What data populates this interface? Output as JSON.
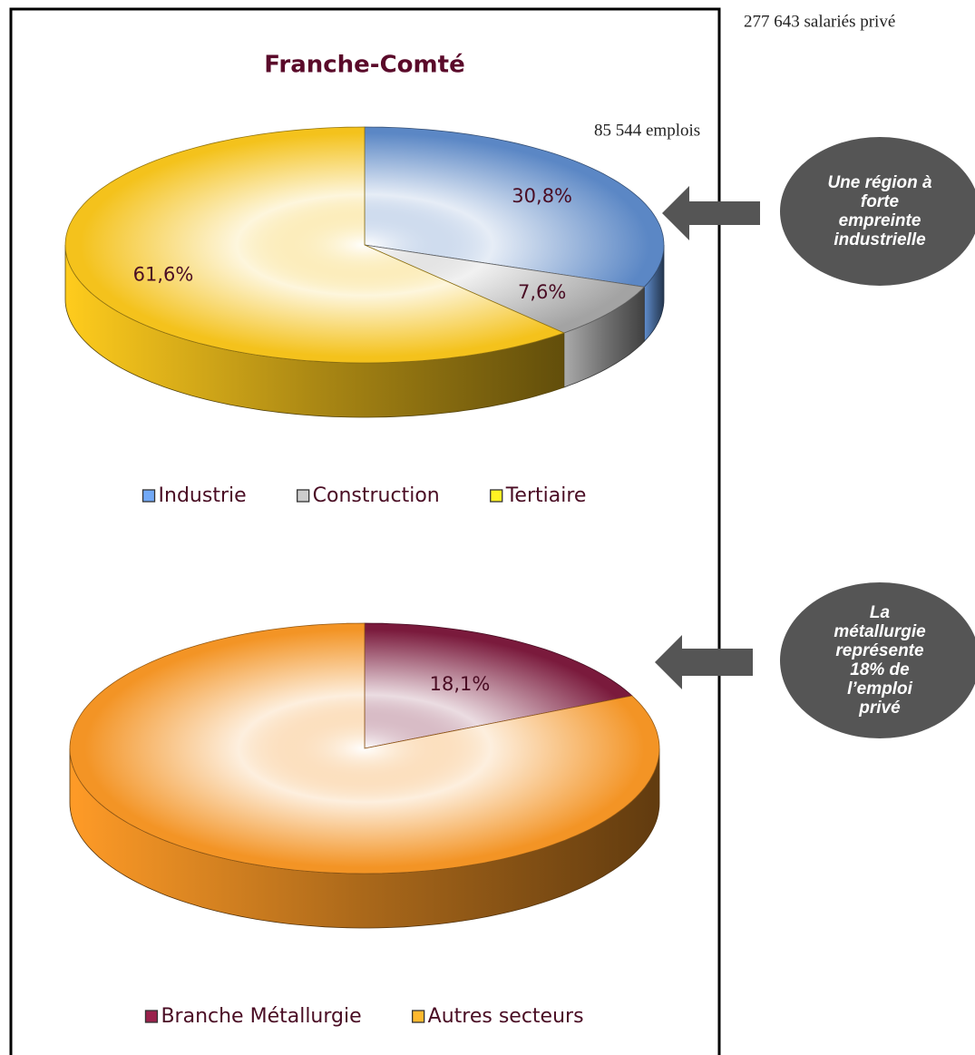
{
  "chart_data": [
    {
      "type": "pie",
      "title": "Franche-Comté",
      "categories": [
        "Industrie",
        "Construction",
        "Tertiaire"
      ],
      "values": [
        30.8,
        7.6,
        61.6
      ],
      "value_labels": [
        "30,8%",
        "7,6%",
        "61,6%"
      ],
      "colors": [
        "#5b87c5",
        "#a3a3a3",
        "#f4c21c"
      ],
      "annotations": [
        "277 643 salariés privé",
        "85 544 emplois",
        "Une région à forte empreinte industrielle"
      ]
    },
    {
      "type": "pie",
      "categories": [
        "Branche Métallurgie",
        "Autres secteurs"
      ],
      "values": [
        18.1,
        81.9
      ],
      "value_labels": [
        "18,1%",
        null
      ],
      "colors": [
        "#7a1a3c",
        "#f39425"
      ],
      "annotations": [
        "La métallurgie représente 18% de l’emploi privé"
      ]
    }
  ]
}
